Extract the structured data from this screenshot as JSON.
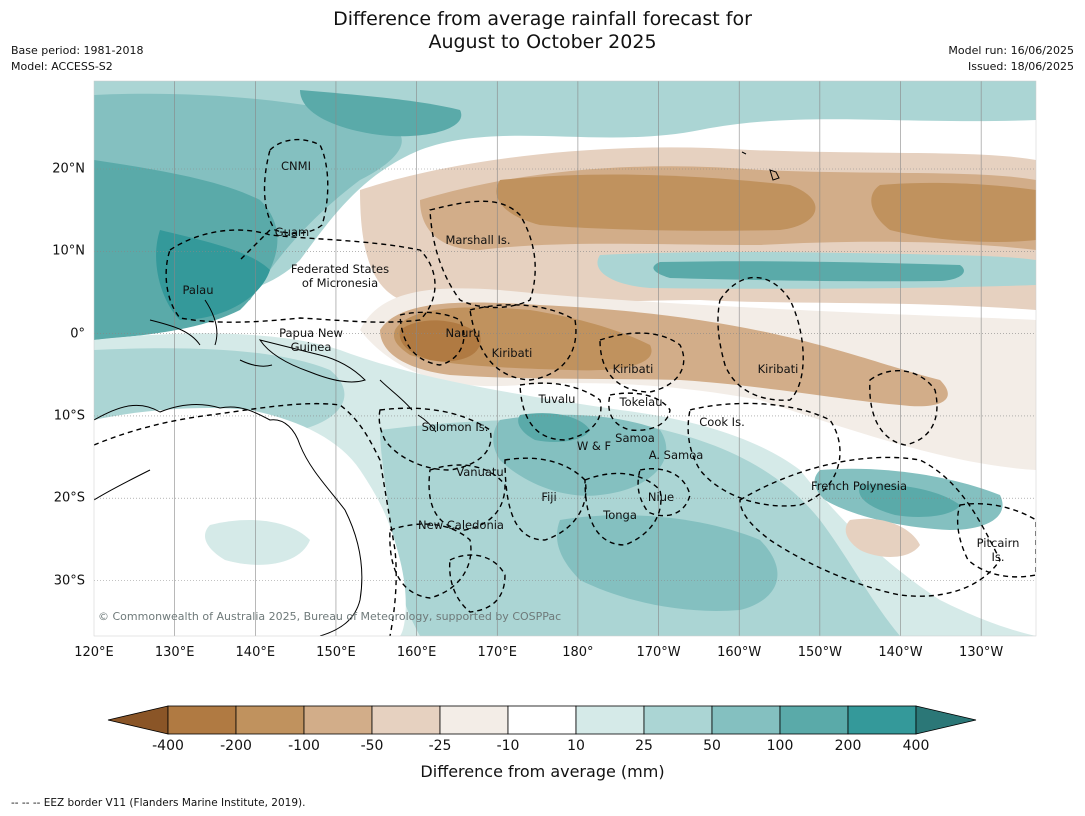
{
  "title": {
    "line1": "Difference from average rainfall forecast for",
    "line2": "August to October 2025"
  },
  "meta": {
    "base_period": "Base period: 1981-2018",
    "model": "Model: ACCESS-S2",
    "model_run": "Model run: 16/06/2025",
    "issued": "Issued: 18/06/2025"
  },
  "map": {
    "longitude_labels": [
      "120°E",
      "130°E",
      "140°E",
      "150°E",
      "160°E",
      "170°E",
      "180°",
      "170°W",
      "160°W",
      "150°W",
      "140°W",
      "130°W"
    ],
    "latitude_labels": [
      "20°N",
      "10°N",
      "0°",
      "10°S",
      "20°S",
      "30°S"
    ],
    "places": [
      {
        "name": "CNMI"
      },
      {
        "name": "Guam"
      },
      {
        "name": "Marshall Is."
      },
      {
        "name": "Federated States\nof Micronesia"
      },
      {
        "name": "Palau"
      },
      {
        "name": "Papua New\nGuinea"
      },
      {
        "name": "Nauru"
      },
      {
        "name": "Kiribati"
      },
      {
        "name": "Kiribati"
      },
      {
        "name": "Kiribati"
      },
      {
        "name": "Tuvalu"
      },
      {
        "name": "Tokelau"
      },
      {
        "name": "Solomon Is."
      },
      {
        "name": "Cook Is."
      },
      {
        "name": "W & F"
      },
      {
        "name": "Samoa"
      },
      {
        "name": "A. Samoa"
      },
      {
        "name": "Vanuatu"
      },
      {
        "name": "Fiji"
      },
      {
        "name": "Niue"
      },
      {
        "name": "French Polynesia"
      },
      {
        "name": "Tonga"
      },
      {
        "name": "New Caledonia"
      },
      {
        "name": "Pitcairn\nIs."
      }
    ],
    "copyright": "© Commonwealth of Australia 2025, Bureau of Meteorology, supported by COSPPac"
  },
  "colorbar": {
    "title": "Difference from average (mm)",
    "ticks": [
      "-400",
      "-200",
      "-100",
      "-50",
      "-25",
      "-10",
      "10",
      "25",
      "50",
      "100",
      "200",
      "400"
    ],
    "colors": [
      "#8a5527",
      "#b07a42",
      "#c0925e",
      "#d2ad89",
      "#e6d1c0",
      "#f3ede7",
      "#ffffff",
      "#d5eae8",
      "#abd5d4",
      "#84c0c0",
      "#5aaaa9",
      "#34999a",
      "#2b7777"
    ]
  },
  "footnote": "--  --  -- EEZ border V11 (Flanders Marine Institute, 2019)."
}
